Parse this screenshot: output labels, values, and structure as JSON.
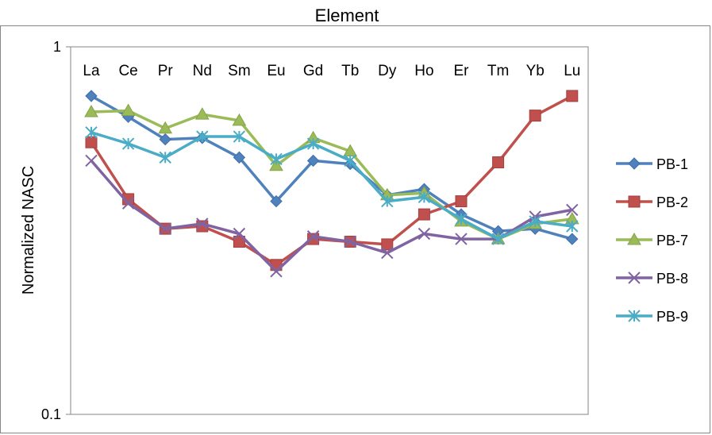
{
  "chart_data": {
    "type": "line",
    "title": "Element",
    "xlabel": "",
    "ylabel": "Normalized NASC",
    "yscale": "log",
    "ylim": [
      0.1,
      1
    ],
    "y_tick_labels": [
      "1",
      "0.1"
    ],
    "categories": [
      "La",
      "Ce",
      "Pr",
      "Nd",
      "Sm",
      "Eu",
      "Gd",
      "Tb",
      "Dy",
      "Ho",
      "Er",
      "Tm",
      "Yb",
      "Lu"
    ],
    "grid": false,
    "legend_position": "right",
    "series": [
      {
        "name": "PB-1",
        "color": "#4F81BD",
        "marker": "diamond",
        "values": [
          0.735,
          0.645,
          0.56,
          0.565,
          0.5,
          0.38,
          0.49,
          0.48,
          0.395,
          0.41,
          0.35,
          0.315,
          0.32,
          0.3
        ]
      },
      {
        "name": "PB-2",
        "color": "#C0504D",
        "marker": "square",
        "values": [
          0.55,
          0.385,
          0.32,
          0.325,
          0.295,
          0.255,
          0.3,
          0.295,
          0.29,
          0.35,
          0.38,
          0.485,
          0.65,
          0.735
        ]
      },
      {
        "name": "PB-7",
        "color": "#9BBB59",
        "marker": "triangle",
        "values": [
          0.665,
          0.67,
          0.6,
          0.655,
          0.63,
          0.475,
          0.565,
          0.52,
          0.395,
          0.4,
          0.335,
          0.3,
          0.33,
          0.34
        ]
      },
      {
        "name": "PB-8",
        "color": "#8064A2",
        "marker": "x",
        "values": [
          0.49,
          0.375,
          0.32,
          0.33,
          0.31,
          0.245,
          0.305,
          0.295,
          0.275,
          0.31,
          0.3,
          0.3,
          0.345,
          0.36
        ]
      },
      {
        "name": "PB-9",
        "color": "#4BACC6",
        "marker": "asterisk",
        "values": [
          0.585,
          0.545,
          0.5,
          0.57,
          0.57,
          0.495,
          0.545,
          0.49,
          0.38,
          0.39,
          0.34,
          0.3,
          0.335,
          0.325
        ]
      }
    ]
  }
}
